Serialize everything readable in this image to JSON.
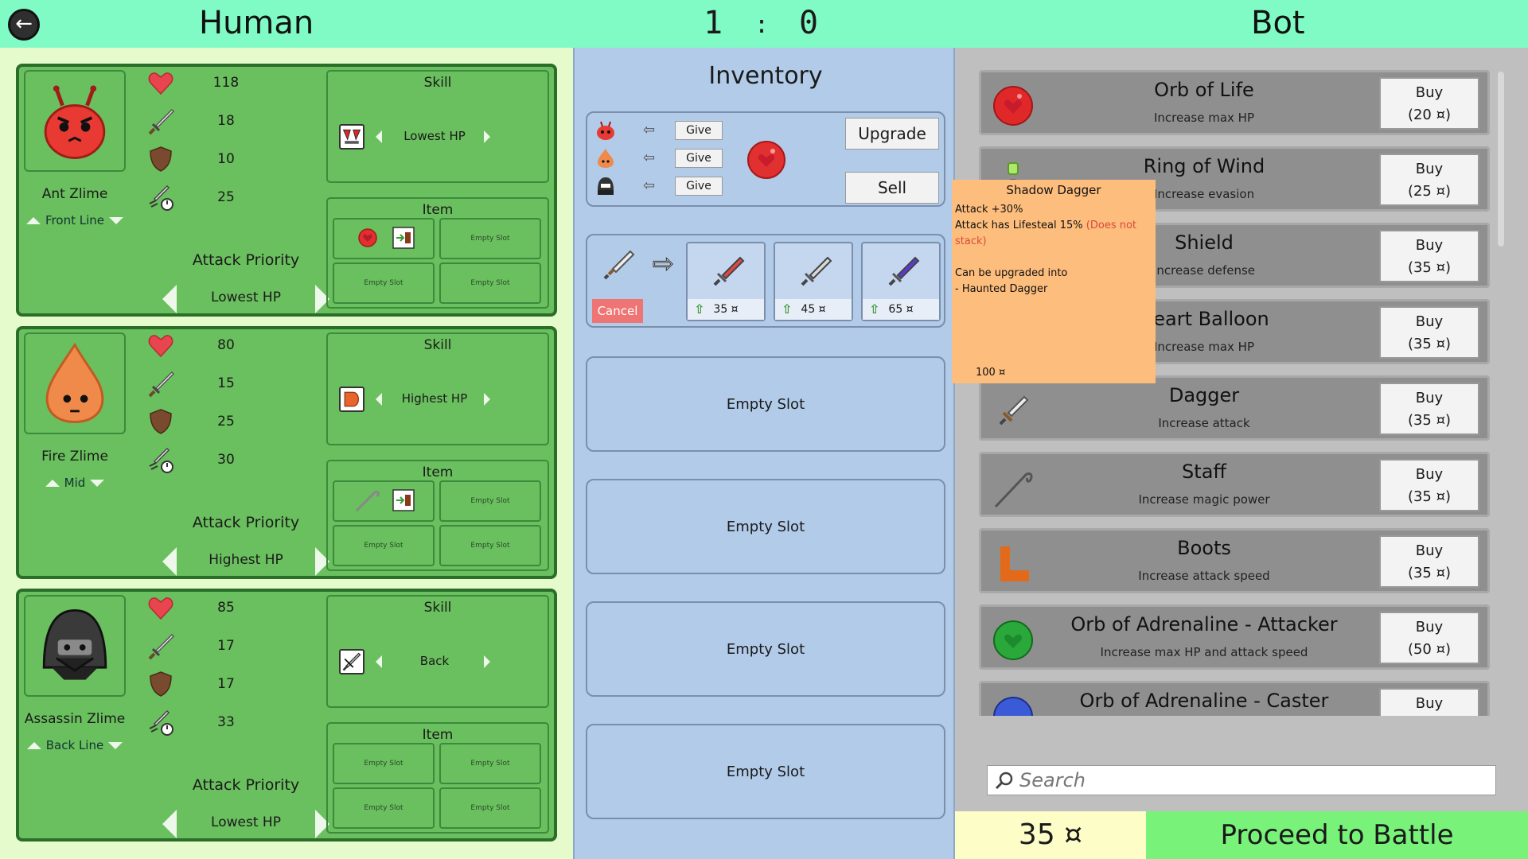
{
  "header": {
    "human_title": "Human",
    "bot_title": "Bot",
    "score_left": "1",
    "score_sep": ":",
    "score_right": "0"
  },
  "units": [
    {
      "name": "Ant Zlime",
      "line": "Front Line",
      "hp": "118",
      "attack": "18",
      "defense": "10",
      "speed": "25",
      "skill_title": "Skill",
      "skill_target": "Lowest HP",
      "item_title": "Item",
      "priority_label": "Attack Priority",
      "priority": "Lowest HP",
      "slots": [
        "",
        "Empty Slot",
        "Empty Slot",
        "Empty Slot"
      ],
      "color": "#e83a32"
    },
    {
      "name": "Fire Zlime",
      "line": "Mid",
      "hp": "80",
      "attack": "15",
      "defense": "25",
      "speed": "30",
      "skill_title": "Skill",
      "skill_target": "Highest HP",
      "item_title": "Item",
      "priority_label": "Attack Priority",
      "priority": "Highest HP",
      "slots": [
        "",
        "Empty Slot",
        "Empty Slot",
        "Empty Slot"
      ],
      "color": "#f08a4b"
    },
    {
      "name": "Assassin Zlime",
      "line": "Back Line",
      "hp": "85",
      "attack": "17",
      "defense": "17",
      "speed": "33",
      "skill_title": "Skill",
      "skill_target": "Back",
      "item_title": "Item",
      "priority_label": "Attack Priority",
      "priority": "Lowest HP",
      "slots": [
        "Empty Slot",
        "Empty Slot",
        "Empty Slot",
        "Empty Slot"
      ],
      "color": "#3a3a3a"
    }
  ],
  "inventory": {
    "title": "Inventory",
    "give_label": "Give",
    "upgrade_label": "Upgrade",
    "sell_label": "Sell",
    "cancel_label": "Cancel",
    "upgrade_options": [
      {
        "price": "35 ¤",
        "color": "#e04848"
      },
      {
        "price": "45 ¤",
        "color": "#d8d8d8"
      },
      {
        "price": "65 ¤",
        "color": "#5a3ad0"
      }
    ],
    "empty_slots": [
      "Empty Slot",
      "Empty Slot",
      "Empty Slot",
      "Empty Slot"
    ]
  },
  "shop": {
    "items": [
      {
        "name": "Orb of Life",
        "desc": "Increase max HP",
        "buy": "Buy",
        "price": "(20 ¤)",
        "icon": "orb-red-icon"
      },
      {
        "name": "Ring of Wind",
        "desc": "Increase evasion",
        "buy": "Buy",
        "price": "(25 ¤)",
        "icon": "ring-icon"
      },
      {
        "name": "Shield",
        "desc": "Increase defense",
        "buy": "Buy",
        "price": "(35 ¤)",
        "icon": "shield-icon"
      },
      {
        "name": "Heart Balloon",
        "desc": "Increase max HP",
        "buy": "Buy",
        "price": "(35 ¤)",
        "icon": "balloon-icon"
      },
      {
        "name": "Dagger",
        "desc": "Increase attack",
        "buy": "Buy",
        "price": "(35 ¤)",
        "icon": "dagger-icon"
      },
      {
        "name": "Staff",
        "desc": "Increase magic power",
        "buy": "Buy",
        "price": "(35 ¤)",
        "icon": "staff-icon"
      },
      {
        "name": "Boots",
        "desc": "Increase attack speed",
        "buy": "Buy",
        "price": "(35 ¤)",
        "icon": "boots-icon"
      },
      {
        "name": "Orb of Adrenaline - Attacker",
        "desc": "Increase max HP and attack speed",
        "buy": "Buy",
        "price": "(50 ¤)",
        "icon": "orb-green-icon"
      },
      {
        "name": "Orb of Adrenaline - Caster",
        "desc": "",
        "buy": "Buy",
        "price": "",
        "icon": "orb-blue-icon"
      }
    ],
    "search_placeholder": "Search",
    "money": "35 ¤",
    "proceed_label": "Proceed to Battle"
  },
  "tooltip": {
    "title": "Shadow Dagger",
    "line1": "Attack +30%",
    "line2_a": "Attack has Lifesteal 15% ",
    "line2_b": "(Does not stack)",
    "line3": "Can be upgraded into",
    "line4": "- Haunted Dagger",
    "price": "100 ¤"
  }
}
